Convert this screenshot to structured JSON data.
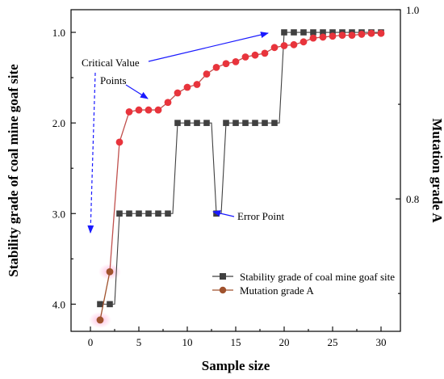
{
  "chart_data": {
    "type": "line",
    "xlabel": "Sample size",
    "ylabel_left": "Stability grade of coal mine goaf site",
    "ylabel_right": "Mutation grade A",
    "x_ticks": [
      "0",
      "5",
      "10",
      "15",
      "20",
      "25",
      "30"
    ],
    "xlim": [
      -2,
      32
    ],
    "y_left_ticks": [
      "1.0",
      "2.0",
      "3.0",
      "4.0"
    ],
    "y_left_lim": [
      0.75,
      4.3
    ],
    "y_left_inverted": true,
    "y_right_ticks": [
      "1.0",
      "0.8"
    ],
    "y_right_lim": [
      0.66,
      1.0
    ],
    "grid": false,
    "legend_position": "bottom-right",
    "series": [
      {
        "name": "Stability grade of coal mine goaf site",
        "axis": "left",
        "color": "#404040",
        "marker": "square",
        "x": [
          1,
          2,
          3,
          4,
          5,
          6,
          7,
          8,
          9,
          10,
          11,
          12,
          13,
          14,
          15,
          16,
          17,
          18,
          19,
          20,
          21,
          22,
          23,
          24,
          25,
          26,
          27,
          28,
          29,
          30
        ],
        "y": [
          4,
          4,
          3,
          3,
          3,
          3,
          3,
          3,
          2,
          2,
          2,
          2,
          3,
          2,
          2,
          2,
          2,
          2,
          2,
          1,
          1,
          1,
          1,
          1,
          1,
          1,
          1,
          1,
          1,
          1
        ]
      },
      {
        "name": "Mutation grade A",
        "axis": "right",
        "color": "#e8343c",
        "line_color": "#c0504d",
        "marker": "circle",
        "x": [
          1,
          2,
          3,
          4,
          5,
          6,
          7,
          8,
          9,
          10,
          11,
          12,
          13,
          14,
          15,
          16,
          17,
          18,
          19,
          20,
          21,
          22,
          23,
          24,
          25,
          26,
          27,
          28,
          29,
          30
        ],
        "y": [
          0.672,
          0.723,
          0.86,
          0.892,
          0.894,
          0.894,
          0.894,
          0.902,
          0.912,
          0.918,
          0.921,
          0.932,
          0.939,
          0.943,
          0.945,
          0.95,
          0.952,
          0.954,
          0.96,
          0.962,
          0.963,
          0.966,
          0.97,
          0.971,
          0.972,
          0.973,
          0.973,
          0.974,
          0.975,
          0.975
        ]
      }
    ],
    "annotations": [
      {
        "text": "Critical Value",
        "color": "#1a1aff"
      },
      {
        "text": "Points",
        "color": "#1a1aff"
      },
      {
        "text": "Error Point",
        "color": "#1a1aff"
      }
    ]
  }
}
